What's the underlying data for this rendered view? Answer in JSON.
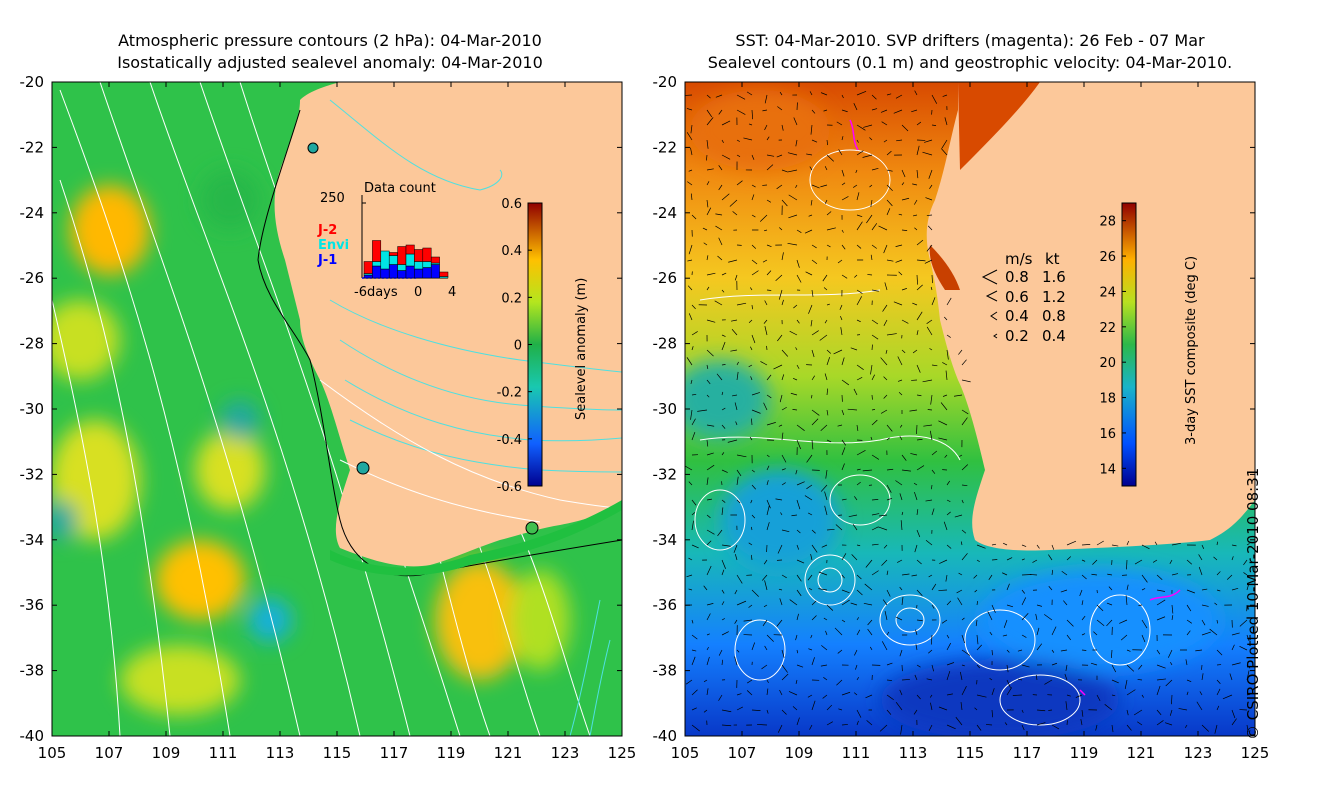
{
  "titles": {
    "left_line1": "Atmospheric pressure contours (2 hPa): 04-Mar-2010",
    "left_line2": "Isostatically adjusted sealevel anomaly: 04-Mar-2010",
    "right_line1": "SST: 04-Mar-2010. SVP drifters (magenta): 26 Feb - 07 Mar",
    "right_line2": "Sealevel contours (0.1 m) and geostrophic velocity: 04-Mar-2010."
  },
  "axes": {
    "lon_ticks": [
      "105",
      "107",
      "109",
      "111",
      "113",
      "115",
      "117",
      "119",
      "121",
      "123",
      "125"
    ],
    "lat_ticks": [
      "-20",
      "-22",
      "-24",
      "-26",
      "-28",
      "-30",
      "-32",
      "-34",
      "-36",
      "-38",
      "-40"
    ],
    "lon_range": [
      105,
      125
    ],
    "lat_range": [
      -40,
      -20
    ]
  },
  "left_colorbar": {
    "label": "Sealevel anomaly (m)",
    "ticks": [
      "0.6",
      "0.4",
      "0.2",
      "0",
      "-0.2",
      "-0.4",
      "-0.6"
    ],
    "range": [
      -0.6,
      0.6
    ]
  },
  "right_colorbar": {
    "label": "3-day SST composite (deg C)",
    "ticks": [
      "28",
      "26",
      "24",
      "22",
      "20",
      "18",
      "16",
      "14"
    ],
    "range": [
      13,
      29
    ]
  },
  "inset": {
    "title": "Data count",
    "ymax_label": "250",
    "x_labels": [
      "-6days",
      "0",
      "4"
    ],
    "legend": [
      "J-2",
      "Envi",
      "J-1"
    ],
    "legend_colors": [
      "#ff0000",
      "#00e5e5",
      "#0000ff"
    ]
  },
  "velocity_legend": {
    "header_ms": "m/s",
    "header_kt": "kt",
    "rows": [
      {
        "ms": "0.8",
        "kt": "1.6"
      },
      {
        "ms": "0.6",
        "kt": "1.2"
      },
      {
        "ms": "0.4",
        "kt": "0.8"
      },
      {
        "ms": "0.2",
        "kt": "0.4"
      }
    ]
  },
  "credit": "© CSIRO Plotted 10-Mar-2010 08:31",
  "colors": {
    "land": "#fcc89a",
    "ocean_green": "#2fc24a",
    "contour_white": "#ffffff",
    "contour_cyan": "#4fe0e0",
    "drifter": "#ff00ff"
  }
}
